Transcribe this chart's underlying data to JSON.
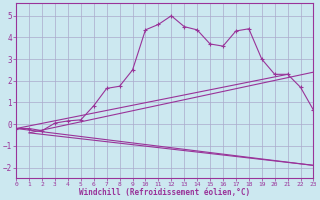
{
  "bg_color": "#cce8f0",
  "line_color": "#993399",
  "grid_color": "#aaaacc",
  "xlabel": "Windchill (Refroidissement éolien,°C)",
  "xlabel_color": "#993399",
  "tick_color": "#993399",
  "ylim": [
    -2.5,
    5.6
  ],
  "xlim": [
    0,
    23
  ],
  "yticks": [
    -2,
    -1,
    0,
    1,
    2,
    3,
    4,
    5
  ],
  "xticks": [
    0,
    1,
    2,
    3,
    4,
    5,
    6,
    7,
    8,
    9,
    10,
    11,
    12,
    13,
    14,
    15,
    16,
    17,
    18,
    19,
    20,
    21,
    22,
    23
  ],
  "curve1_x": [
    0,
    1,
    2,
    3,
    4,
    5,
    6,
    7,
    8,
    9,
    10,
    11,
    12,
    13,
    14,
    15,
    16,
    17,
    18,
    19,
    20,
    21,
    22,
    23
  ],
  "curve1_y": [
    -0.2,
    -0.2,
    -0.3,
    0.05,
    0.15,
    0.2,
    0.85,
    1.65,
    1.75,
    2.5,
    4.35,
    4.6,
    5.0,
    4.5,
    4.35,
    3.7,
    3.6,
    4.3,
    4.4,
    3.0,
    2.3,
    2.3,
    1.7,
    0.65
  ],
  "curve2_x": [
    0,
    23
  ],
  "curve2_y": [
    -0.2,
    -1.9
  ],
  "curve3_x": [
    0,
    21
  ],
  "curve3_y": [
    -0.2,
    2.3
  ],
  "curve4_x": [
    1,
    23
  ],
  "curve4_y": [
    -0.4,
    2.4
  ],
  "curve5_x": [
    1,
    23
  ],
  "curve5_y": [
    -0.4,
    -1.9
  ]
}
